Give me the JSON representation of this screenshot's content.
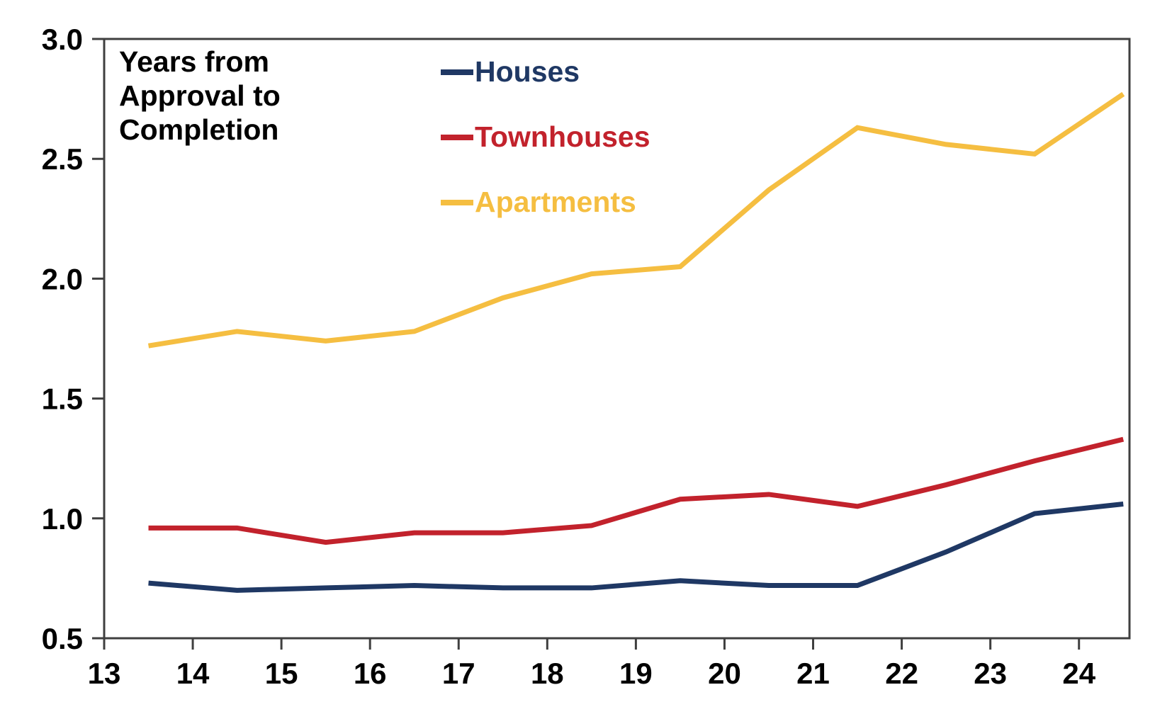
{
  "chart_data": {
    "type": "line",
    "title_annotation": "Years from\nApproval to\nCompletion",
    "ylabel_implicit": "Years",
    "x": [
      13.5,
      14.5,
      15.5,
      16.5,
      17.5,
      18.5,
      19.5,
      20.5,
      21.5,
      22.5,
      23.5,
      24.5
    ],
    "series": [
      {
        "name": "Houses",
        "color": "#1F3864",
        "values": [
          0.73,
          0.7,
          0.71,
          0.72,
          0.71,
          0.71,
          0.74,
          0.72,
          0.72,
          0.86,
          1.02,
          1.06
        ]
      },
      {
        "name": "Townhouses",
        "color": "#C2222C",
        "values": [
          0.96,
          0.96,
          0.9,
          0.94,
          0.94,
          0.97,
          1.08,
          1.1,
          1.05,
          1.14,
          1.24,
          1.33
        ]
      },
      {
        "name": "Apartments",
        "color": "#F5BE41",
        "values": [
          1.72,
          1.78,
          1.74,
          1.78,
          1.92,
          2.02,
          2.05,
          2.37,
          2.63,
          2.56,
          2.52,
          2.77
        ]
      }
    ],
    "x_ticks": [
      {
        "label": "13",
        "value": 13
      },
      {
        "label": "14",
        "value": 14
      },
      {
        "label": "15",
        "value": 15
      },
      {
        "label": "16",
        "value": 16
      },
      {
        "label": "17",
        "value": 17
      },
      {
        "label": "18",
        "value": 18
      },
      {
        "label": "19",
        "value": 19
      },
      {
        "label": "20",
        "value": 20
      },
      {
        "label": "21",
        "value": 21
      },
      {
        "label": "22",
        "value": 22
      },
      {
        "label": "23",
        "value": 23
      },
      {
        "label": "24",
        "value": 24
      }
    ],
    "y_ticks": [
      {
        "label": "0.5",
        "value": 0.5
      },
      {
        "label": "1.0",
        "value": 1.0
      },
      {
        "label": "1.5",
        "value": 1.5
      },
      {
        "label": "2.0",
        "value": 2.0
      },
      {
        "label": "2.5",
        "value": 2.5
      },
      {
        "label": "3.0",
        "value": 3.0
      }
    ],
    "xlim": [
      13,
      24.57
    ],
    "ylim": [
      0.5,
      3.0
    ],
    "grid": false,
    "legend_position": "inside-top-center",
    "axis_color": "#3F3F3F",
    "text_color": "#000000",
    "background_color": "#FFFFFF"
  }
}
